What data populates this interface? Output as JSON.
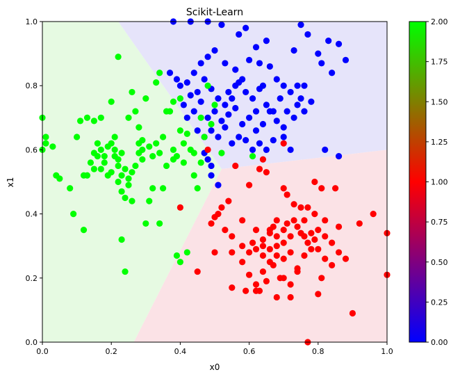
{
  "chart_data": {
    "type": "scatter",
    "title": "Scikit-Learn",
    "xlabel": "x0",
    "ylabel": "x1",
    "xlim": [
      0,
      1
    ],
    "ylim": [
      0,
      1
    ],
    "grid": false,
    "x_ticks": [
      "0.0",
      "0.2",
      "0.4",
      "0.6",
      "0.8",
      "1.0"
    ],
    "y_ticks": [
      "0.0",
      "0.2",
      "0.4",
      "0.6",
      "0.8",
      "1.0"
    ],
    "colorbar": {
      "range": [
        0,
        2
      ],
      "ticks": [
        "0.00",
        "0.25",
        "0.50",
        "0.75",
        "1.00",
        "1.25",
        "1.50",
        "1.75",
        "2.00"
      ],
      "colors": [
        "#0000ff",
        "#ff0000",
        "#00ff00"
      ]
    },
    "decision_regions": [
      {
        "class": 0,
        "color": "#e6e4fa",
        "polygon": [
          [
            0.22,
            1.0
          ],
          [
            0.52,
            0.54
          ],
          [
            1.0,
            0.6
          ],
          [
            1.0,
            1.0
          ]
        ]
      },
      {
        "class": 1,
        "color": "#fbe2e6",
        "polygon": [
          [
            0.52,
            0.54
          ],
          [
            1.0,
            0.6
          ],
          [
            1.0,
            0.0
          ],
          [
            0.265,
            0.0
          ]
        ]
      },
      {
        "class": 2,
        "color": "#e6fae2",
        "polygon": [
          [
            0.0,
            1.0
          ],
          [
            0.22,
            1.0
          ],
          [
            0.52,
            0.54
          ],
          [
            0.265,
            0.0
          ],
          [
            0.0,
            0.0
          ]
        ]
      }
    ],
    "series": [
      {
        "class": 0,
        "color": "#0000ff",
        "points": [
          [
            0.38,
            1.0
          ],
          [
            0.43,
            1.0
          ],
          [
            0.48,
            1.0
          ],
          [
            0.52,
            0.99
          ],
          [
            0.57,
            0.96
          ],
          [
            0.59,
            0.98
          ],
          [
            0.62,
            0.92
          ],
          [
            0.65,
            0.94
          ],
          [
            0.75,
            0.99
          ],
          [
            0.77,
            0.96
          ],
          [
            0.83,
            0.94
          ],
          [
            0.86,
            0.93
          ],
          [
            0.88,
            0.88
          ],
          [
            0.81,
            0.87
          ],
          [
            0.73,
            0.91
          ],
          [
            0.44,
            0.84
          ],
          [
            0.46,
            0.87
          ],
          [
            0.48,
            0.89
          ],
          [
            0.5,
            0.91
          ],
          [
            0.53,
            0.87
          ],
          [
            0.56,
            0.85
          ],
          [
            0.58,
            0.82
          ],
          [
            0.6,
            0.88
          ],
          [
            0.63,
            0.87
          ],
          [
            0.66,
            0.86
          ],
          [
            0.68,
            0.82
          ],
          [
            0.7,
            0.8
          ],
          [
            0.72,
            0.78
          ],
          [
            0.74,
            0.8
          ],
          [
            0.75,
            0.76
          ],
          [
            0.39,
            0.82
          ],
          [
            0.4,
            0.8
          ],
          [
            0.42,
            0.81
          ],
          [
            0.43,
            0.77
          ],
          [
            0.45,
            0.78
          ],
          [
            0.47,
            0.82
          ],
          [
            0.49,
            0.79
          ],
          [
            0.51,
            0.76
          ],
          [
            0.53,
            0.74
          ],
          [
            0.55,
            0.76
          ],
          [
            0.57,
            0.81
          ],
          [
            0.59,
            0.78
          ],
          [
            0.61,
            0.76
          ],
          [
            0.63,
            0.79
          ],
          [
            0.65,
            0.74
          ],
          [
            0.67,
            0.72
          ],
          [
            0.37,
            0.84
          ],
          [
            0.41,
            0.74
          ],
          [
            0.44,
            0.72
          ],
          [
            0.46,
            0.75
          ],
          [
            0.48,
            0.7
          ],
          [
            0.5,
            0.72
          ],
          [
            0.52,
            0.69
          ],
          [
            0.54,
            0.71
          ],
          [
            0.56,
            0.73
          ],
          [
            0.58,
            0.68
          ],
          [
            0.6,
            0.7
          ],
          [
            0.62,
            0.66
          ],
          [
            0.64,
            0.68
          ],
          [
            0.66,
            0.72
          ],
          [
            0.68,
            0.69
          ],
          [
            0.7,
            0.67
          ],
          [
            0.42,
            0.7
          ],
          [
            0.45,
            0.66
          ],
          [
            0.47,
            0.64
          ],
          [
            0.49,
            0.66
          ],
          [
            0.51,
            0.64
          ],
          [
            0.53,
            0.67
          ],
          [
            0.55,
            0.62
          ],
          [
            0.57,
            0.64
          ],
          [
            0.59,
            0.63
          ],
          [
            0.61,
            0.6
          ],
          [
            0.63,
            0.62
          ],
          [
            0.65,
            0.6
          ],
          [
            0.67,
            0.63
          ],
          [
            0.7,
            0.64
          ],
          [
            0.72,
            0.6
          ],
          [
            0.76,
            0.8
          ],
          [
            0.78,
            0.75
          ],
          [
            0.76,
            0.72
          ],
          [
            0.48,
            0.57
          ],
          [
            0.49,
            0.52
          ],
          [
            0.49,
            0.55
          ],
          [
            0.51,
            0.49
          ],
          [
            0.47,
            0.59
          ],
          [
            0.82,
            0.6
          ],
          [
            0.86,
            0.58
          ],
          [
            0.8,
            0.9
          ],
          [
            0.84,
            0.84
          ],
          [
            0.54,
            0.78
          ],
          [
            0.56,
            0.8
          ],
          [
            0.62,
            0.72
          ],
          [
            0.69,
            0.76
          ],
          [
            0.71,
            0.72
          ],
          [
            0.73,
            0.7
          ],
          [
            0.74,
            0.74
          ],
          [
            0.64,
            0.8
          ]
        ]
      },
      {
        "class": 1,
        "color": "#ff0000",
        "points": [
          [
            0.56,
            0.55
          ],
          [
            0.6,
            0.49
          ],
          [
            0.63,
            0.54
          ],
          [
            0.64,
            0.57
          ],
          [
            0.65,
            0.53
          ],
          [
            0.7,
            0.48
          ],
          [
            0.71,
            0.46
          ],
          [
            0.73,
            0.43
          ],
          [
            0.75,
            0.42
          ],
          [
            0.77,
            0.42
          ],
          [
            0.79,
            0.5
          ],
          [
            0.81,
            0.48
          ],
          [
            0.85,
            0.48
          ],
          [
            0.79,
            0.4
          ],
          [
            0.82,
            0.38
          ],
          [
            0.76,
            0.38
          ],
          [
            0.54,
            0.44
          ],
          [
            0.58,
            0.38
          ],
          [
            0.62,
            0.35
          ],
          [
            0.64,
            0.32
          ],
          [
            0.66,
            0.34
          ],
          [
            0.67,
            0.36
          ],
          [
            0.68,
            0.38
          ],
          [
            0.7,
            0.35
          ],
          [
            0.72,
            0.33
          ],
          [
            0.74,
            0.36
          ],
          [
            0.76,
            0.33
          ],
          [
            0.78,
            0.34
          ],
          [
            0.8,
            0.35
          ],
          [
            0.82,
            0.33
          ],
          [
            0.84,
            0.31
          ],
          [
            0.86,
            0.36
          ],
          [
            0.49,
            0.37
          ],
          [
            0.5,
            0.39
          ],
          [
            0.51,
            0.4
          ],
          [
            0.52,
            0.42
          ],
          [
            0.53,
            0.35
          ],
          [
            0.55,
            0.33
          ],
          [
            0.58,
            0.3
          ],
          [
            0.6,
            0.28
          ],
          [
            0.62,
            0.29
          ],
          [
            0.64,
            0.27
          ],
          [
            0.66,
            0.29
          ],
          [
            0.68,
            0.3
          ],
          [
            0.7,
            0.26
          ],
          [
            0.72,
            0.28
          ],
          [
            0.74,
            0.23
          ],
          [
            0.76,
            0.27
          ],
          [
            0.78,
            0.29
          ],
          [
            0.8,
            0.29
          ],
          [
            0.82,
            0.26
          ],
          [
            0.84,
            0.24
          ],
          [
            0.86,
            0.28
          ],
          [
            0.88,
            0.26
          ],
          [
            0.9,
            0.09
          ],
          [
            0.92,
            0.37
          ],
          [
            0.96,
            0.4
          ],
          [
            1.0,
            0.34
          ],
          [
            1.0,
            0.21
          ],
          [
            0.81,
            0.2
          ],
          [
            0.8,
            0.15
          ],
          [
            0.77,
            0.0
          ],
          [
            0.72,
            0.14
          ],
          [
            0.69,
            0.2
          ],
          [
            0.55,
            0.28
          ],
          [
            0.58,
            0.25
          ],
          [
            0.6,
            0.21
          ],
          [
            0.62,
            0.18
          ],
          [
            0.63,
            0.16
          ],
          [
            0.65,
            0.19
          ],
          [
            0.64,
            0.22
          ],
          [
            0.67,
            0.24
          ],
          [
            0.68,
            0.14
          ],
          [
            0.7,
            0.2
          ],
          [
            0.72,
            0.18
          ],
          [
            0.74,
            0.22
          ],
          [
            0.55,
            0.17
          ],
          [
            0.59,
            0.16
          ],
          [
            0.62,
            0.16
          ],
          [
            0.5,
            0.28
          ],
          [
            0.45,
            0.22
          ],
          [
            0.4,
            0.42
          ],
          [
            0.48,
            0.6
          ],
          [
            0.7,
            0.62
          ],
          [
            0.66,
            0.35
          ],
          [
            0.68,
            0.33
          ],
          [
            0.7,
            0.31
          ],
          [
            0.71,
            0.37
          ],
          [
            0.73,
            0.38
          ],
          [
            0.75,
            0.34
          ],
          [
            0.77,
            0.31
          ],
          [
            0.79,
            0.32
          ],
          [
            0.61,
            0.31
          ],
          [
            0.64,
            0.3
          ],
          [
            0.66,
            0.25
          ],
          [
            0.68,
            0.27
          ]
        ]
      },
      {
        "class": 2,
        "color": "#00ff00",
        "points": [
          [
            0.0,
            0.7
          ],
          [
            0.0,
            0.6
          ],
          [
            0.01,
            0.64
          ],
          [
            0.01,
            0.62
          ],
          [
            0.03,
            0.61
          ],
          [
            0.04,
            0.52
          ],
          [
            0.05,
            0.51
          ],
          [
            0.08,
            0.48
          ],
          [
            0.09,
            0.4
          ],
          [
            0.1,
            0.64
          ],
          [
            0.11,
            0.69
          ],
          [
            0.12,
            0.52
          ],
          [
            0.12,
            0.35
          ],
          [
            0.13,
            0.52
          ],
          [
            0.13,
            0.7
          ],
          [
            0.15,
            0.69
          ],
          [
            0.14,
            0.56
          ],
          [
            0.15,
            0.54
          ],
          [
            0.16,
            0.58
          ],
          [
            0.17,
            0.6
          ],
          [
            0.18,
            0.56
          ],
          [
            0.19,
            0.61
          ],
          [
            0.2,
            0.62
          ],
          [
            0.21,
            0.58
          ],
          [
            0.22,
            0.55
          ],
          [
            0.23,
            0.59
          ],
          [
            0.24,
            0.54
          ],
          [
            0.25,
            0.51
          ],
          [
            0.26,
            0.53
          ],
          [
            0.27,
            0.55
          ],
          [
            0.28,
            0.59
          ],
          [
            0.29,
            0.63
          ],
          [
            0.16,
            0.62
          ],
          [
            0.17,
            0.7
          ],
          [
            0.18,
            0.58
          ],
          [
            0.19,
            0.52
          ],
          [
            0.2,
            0.75
          ],
          [
            0.21,
            0.64
          ],
          [
            0.22,
            0.5
          ],
          [
            0.23,
            0.47
          ],
          [
            0.24,
            0.45
          ],
          [
            0.25,
            0.49
          ],
          [
            0.26,
            0.44
          ],
          [
            0.27,
            0.72
          ],
          [
            0.28,
            0.67
          ],
          [
            0.29,
            0.6
          ],
          [
            0.3,
            0.76
          ],
          [
            0.31,
            0.61
          ],
          [
            0.32,
            0.58
          ],
          [
            0.33,
            0.62
          ],
          [
            0.34,
            0.59
          ],
          [
            0.35,
            0.64
          ],
          [
            0.36,
            0.55
          ],
          [
            0.37,
            0.72
          ],
          [
            0.38,
            0.6
          ],
          [
            0.39,
            0.58
          ],
          [
            0.4,
            0.66
          ],
          [
            0.41,
            0.62
          ],
          [
            0.42,
            0.65
          ],
          [
            0.43,
            0.6
          ],
          [
            0.44,
            0.52
          ],
          [
            0.45,
            0.48
          ],
          [
            0.46,
            0.56
          ],
          [
            0.47,
            0.64
          ],
          [
            0.22,
            0.89
          ],
          [
            0.23,
            0.32
          ],
          [
            0.24,
            0.22
          ],
          [
            0.25,
            0.7
          ],
          [
            0.26,
            0.78
          ],
          [
            0.29,
            0.57
          ],
          [
            0.3,
            0.37
          ],
          [
            0.31,
            0.44
          ],
          [
            0.32,
            0.48
          ],
          [
            0.33,
            0.81
          ],
          [
            0.34,
            0.84
          ],
          [
            0.34,
            0.37
          ],
          [
            0.35,
            0.48
          ],
          [
            0.36,
            0.72
          ],
          [
            0.38,
            0.75
          ],
          [
            0.39,
            0.27
          ],
          [
            0.4,
            0.25
          ],
          [
            0.42,
            0.28
          ],
          [
            0.4,
            0.76
          ],
          [
            0.46,
            0.7
          ],
          [
            0.48,
            0.8
          ],
          [
            0.49,
            0.68
          ],
          [
            0.5,
            0.74
          ],
          [
            0.52,
            0.59
          ],
          [
            0.61,
            0.58
          ],
          [
            0.2,
            0.53
          ],
          [
            0.21,
            0.6
          ],
          [
            0.22,
            0.57
          ],
          [
            0.23,
            0.52
          ],
          [
            0.38,
            0.57
          ],
          [
            0.41,
            0.56
          ],
          [
            0.44,
            0.59
          ],
          [
            0.15,
            0.59
          ],
          [
            0.17,
            0.54
          ],
          [
            0.28,
            0.62
          ]
        ]
      }
    ]
  }
}
